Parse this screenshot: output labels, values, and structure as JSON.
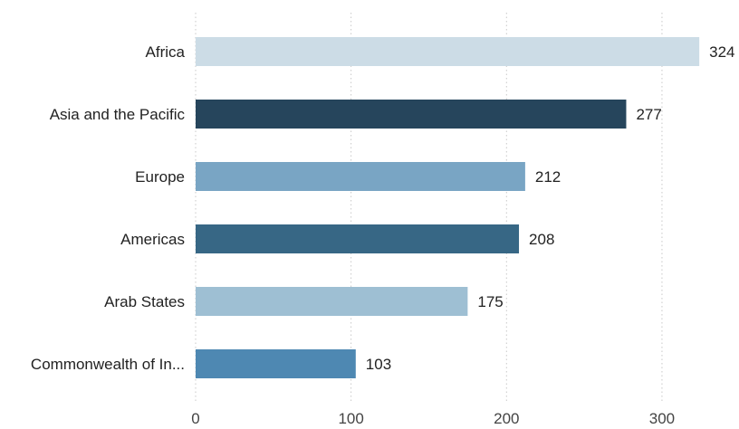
{
  "chart_data": {
    "type": "bar",
    "orientation": "horizontal",
    "title": "",
    "xlabel": "",
    "ylabel": "",
    "categories": [
      "Africa",
      "Asia and the Pacific",
      "Europe",
      "Americas",
      "Arab States",
      "Commonwealth of In..."
    ],
    "values": [
      324,
      277,
      212,
      208,
      175,
      103
    ],
    "value_labels": [
      "324",
      "277",
      "212",
      "208",
      "175",
      "103"
    ],
    "bar_colors": [
      "#ccdce6",
      "#26455c",
      "#79a5c4",
      "#376785",
      "#9ebfd3",
      "#4e88b2"
    ],
    "x_ticks": [
      0,
      100,
      200,
      300
    ],
    "x_tick_labels": [
      "0",
      "100",
      "200",
      "300"
    ],
    "xlim": [
      0,
      345
    ],
    "grid": "vertical dotted",
    "legend": "none"
  }
}
